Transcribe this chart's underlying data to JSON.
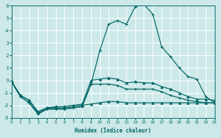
{
  "xlabel": "Humidex (Indice chaleur)",
  "bg_color": "#cce8e8",
  "grid_color": "#ffffff",
  "line_color": "#006666",
  "xlim": [
    0,
    23
  ],
  "ylim": [
    -3,
    6
  ],
  "xticks": [
    0,
    1,
    2,
    3,
    4,
    5,
    6,
    7,
    8,
    9,
    10,
    11,
    12,
    13,
    14,
    15,
    16,
    17,
    18,
    19,
    20,
    21,
    22,
    23
  ],
  "yticks": [
    -3,
    -2,
    -1,
    0,
    1,
    2,
    3,
    4,
    5,
    6
  ],
  "line1_x": [
    0,
    1,
    2,
    3,
    4,
    5,
    6,
    7,
    8,
    9,
    10,
    11,
    12,
    13,
    14,
    15,
    16,
    17,
    18,
    19,
    20,
    21,
    22,
    23
  ],
  "line1_y": [
    -0.1,
    -1.3,
    -1.8,
    -2.7,
    -2.3,
    -2.3,
    -2.3,
    -2.2,
    -2.1,
    -0.3,
    2.4,
    4.5,
    4.8,
    4.5,
    5.9,
    6.1,
    5.3,
    2.7,
    1.9,
    1.0,
    0.3,
    0.1,
    -1.3,
    -1.8
  ],
  "line2_x": [
    0,
    1,
    2,
    3,
    4,
    5,
    6,
    7,
    8,
    9,
    10,
    11,
    12,
    13,
    14,
    15,
    16,
    17,
    18,
    19,
    20,
    21,
    22,
    23
  ],
  "line2_y": [
    -0.1,
    -1.3,
    -1.8,
    -2.7,
    -2.3,
    -2.3,
    -2.3,
    -2.2,
    -2.1,
    -0.3,
    -0.3,
    -0.3,
    -0.4,
    -0.7,
    -0.7,
    -0.7,
    -0.7,
    -0.9,
    -1.2,
    -1.4,
    -1.6,
    -1.7,
    -1.8,
    -1.8
  ],
  "line3_x": [
    0,
    1,
    2,
    3,
    4,
    5,
    6,
    7,
    8,
    9,
    10,
    11,
    12,
    13,
    14,
    15,
    16,
    17,
    18,
    19,
    20,
    21,
    22,
    23
  ],
  "line3_y": [
    -0.1,
    -1.2,
    -1.6,
    -2.5,
    -2.2,
    -2.1,
    -2.1,
    -2.0,
    -1.9,
    0.0,
    0.1,
    0.2,
    0.1,
    -0.2,
    -0.1,
    -0.2,
    -0.2,
    -0.5,
    -0.7,
    -1.0,
    -1.3,
    -1.5,
    -1.5,
    -1.6
  ],
  "line4_x": [
    0,
    1,
    2,
    3,
    4,
    5,
    6,
    7,
    8,
    9,
    10,
    11,
    12,
    13,
    14,
    15,
    16,
    17,
    18,
    19,
    20,
    21,
    22,
    23
  ],
  "line4_y": [
    -0.1,
    -1.2,
    -1.6,
    -2.6,
    -2.2,
    -2.2,
    -2.2,
    -2.1,
    -2.0,
    -1.9,
    -1.8,
    -1.7,
    -1.7,
    -1.8,
    -1.8,
    -1.8,
    -1.8,
    -1.8,
    -1.8,
    -1.8,
    -1.8,
    -1.8,
    -1.8,
    -1.8
  ]
}
